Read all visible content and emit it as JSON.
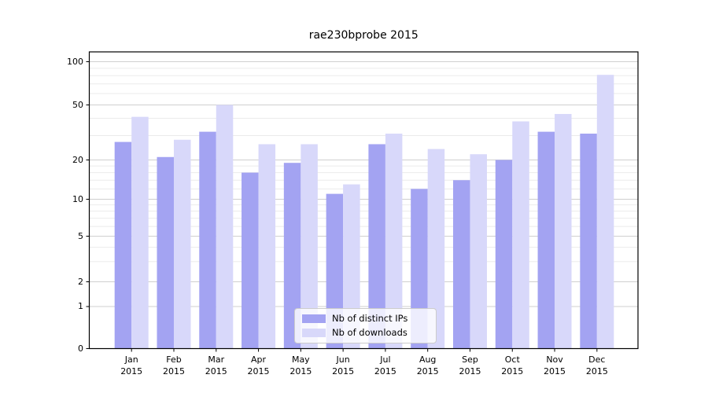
{
  "title": "rae230bprobe 2015",
  "legend": {
    "items": [
      {
        "label": "Nb of distinct IPs",
        "color": "#a3a3f2"
      },
      {
        "label": "Nb of downloads",
        "color": "#d8d8fa"
      }
    ]
  },
  "chart_data": {
    "type": "bar",
    "title": "rae230bprobe 2015",
    "categories": [
      {
        "month": "Jan",
        "year": "2015"
      },
      {
        "month": "Feb",
        "year": "2015"
      },
      {
        "month": "Mar",
        "year": "2015"
      },
      {
        "month": "Apr",
        "year": "2015"
      },
      {
        "month": "May",
        "year": "2015"
      },
      {
        "month": "Jun",
        "year": "2015"
      },
      {
        "month": "Jul",
        "year": "2015"
      },
      {
        "month": "Aug",
        "year": "2015"
      },
      {
        "month": "Sep",
        "year": "2015"
      },
      {
        "month": "Oct",
        "year": "2015"
      },
      {
        "month": "Nov",
        "year": "2015"
      },
      {
        "month": "Dec",
        "year": "2015"
      }
    ],
    "series": [
      {
        "name": "Nb of distinct IPs",
        "color": "#a3a3f2",
        "values": [
          27,
          21,
          32,
          16,
          19,
          11,
          26,
          12,
          14,
          20,
          32,
          31
        ]
      },
      {
        "name": "Nb of downloads",
        "color": "#d8d8fa",
        "values": [
          41,
          28,
          50,
          26,
          26,
          13,
          31,
          24,
          22,
          38,
          43,
          81
        ]
      }
    ],
    "xlabel": "",
    "ylabel": "",
    "y_scale": "symlog",
    "yticks": [
      0,
      1,
      2,
      5,
      10,
      20,
      50,
      100
    ],
    "ylim": [
      0,
      117
    ],
    "grid": true,
    "legend_position": "lower center"
  }
}
